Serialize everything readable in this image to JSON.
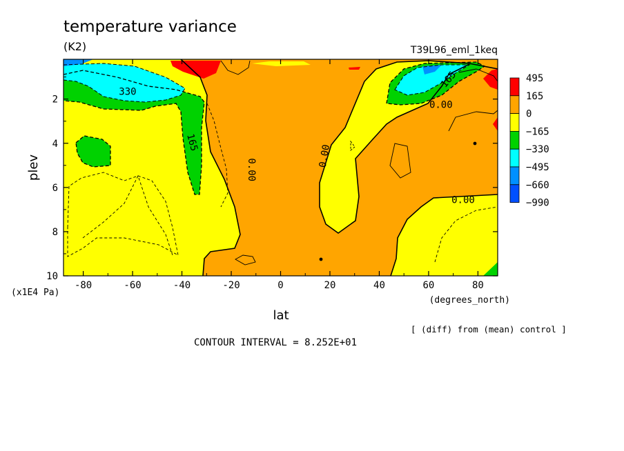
{
  "chart_data": {
    "type": "heatmap",
    "title": "temperature variance",
    "units": "(K2)",
    "run_label": "T39L96_eml_1keq",
    "xlabel": "lat",
    "x_units": "(degrees_north)",
    "ylabel": "plev",
    "y_units": "(x1E4 Pa)",
    "x_ticks": [
      "-80",
      "-60",
      "-40",
      "-20",
      "0",
      "20",
      "40",
      "60",
      "80"
    ],
    "y_ticks": [
      "2",
      "4",
      "6",
      "8",
      "10"
    ],
    "xlim": [
      -88,
      88
    ],
    "ylim": [
      10,
      0.2
    ],
    "diff_note": "[ (diff) from (mean) control ]",
    "contour_interval_text": "CONTOUR INTERVAL = 8.252E+01",
    "colorbar": {
      "labels": [
        "495",
        "165",
        "0",
        "−165",
        "−330",
        "−495",
        "−660",
        "−990"
      ],
      "colors": [
        "#ff0000",
        "#ffa500",
        "#ffff00",
        "#00d200",
        "#00ffff",
        "#0090ff",
        "#0050ff"
      ]
    },
    "contour_labels": [
      {
        "text": "330",
        "lat": -62,
        "plev": 1.8
      },
      {
        "text": "165",
        "lat": -37,
        "plev": 4.0
      },
      {
        "text": "0.00",
        "lat": -13,
        "plev": 5.2
      },
      {
        "text": "0.00",
        "lat": 19,
        "plev": 4.6
      },
      {
        "text": "0.00",
        "lat": 65,
        "plev": 2.4
      },
      {
        "text": "165",
        "lat": 69,
        "plev": 1.2
      },
      {
        "text": "0.00",
        "lat": 74,
        "plev": 6.7
      }
    ]
  }
}
